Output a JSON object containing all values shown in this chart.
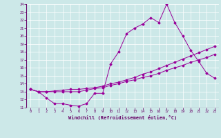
{
  "xlabel": "Windchill (Refroidissement éolien,°C)",
  "background_color": "#cce8e8",
  "line_color": "#990099",
  "x_values": [
    0,
    1,
    2,
    3,
    4,
    5,
    6,
    7,
    8,
    9,
    10,
    11,
    12,
    13,
    14,
    15,
    16,
    17,
    18,
    19,
    20,
    21,
    22,
    23
  ],
  "series1": [
    13.3,
    13.0,
    12.2,
    11.5,
    11.5,
    11.3,
    11.2,
    11.5,
    12.8,
    12.8,
    16.5,
    18.0,
    20.3,
    21.0,
    21.5,
    22.3,
    21.7,
    24.0,
    21.7,
    20.0,
    18.2,
    16.8,
    15.3,
    14.7
  ],
  "series2": [
    13.3,
    13.0,
    13.0,
    13.0,
    13.0,
    13.0,
    13.0,
    13.2,
    13.4,
    13.5,
    13.8,
    14.0,
    14.3,
    14.5,
    14.8,
    15.0,
    15.3,
    15.7,
    16.0,
    16.3,
    16.7,
    17.0,
    17.3,
    17.7
  ],
  "series3": [
    13.3,
    13.0,
    13.0,
    13.1,
    13.2,
    13.3,
    13.3,
    13.4,
    13.5,
    13.7,
    14.0,
    14.2,
    14.5,
    14.8,
    15.2,
    15.5,
    15.9,
    16.3,
    16.7,
    17.1,
    17.5,
    17.9,
    18.3,
    18.7
  ],
  "ylim": [
    11,
    24
  ],
  "xlim": [
    -0.5,
    23.5
  ],
  "yticks": [
    11,
    12,
    13,
    14,
    15,
    16,
    17,
    18,
    19,
    20,
    21,
    22,
    23,
    24
  ],
  "xticks": [
    0,
    1,
    2,
    3,
    4,
    5,
    6,
    7,
    8,
    9,
    10,
    11,
    12,
    13,
    14,
    15,
    16,
    17,
    18,
    19,
    20,
    21,
    22,
    23
  ]
}
